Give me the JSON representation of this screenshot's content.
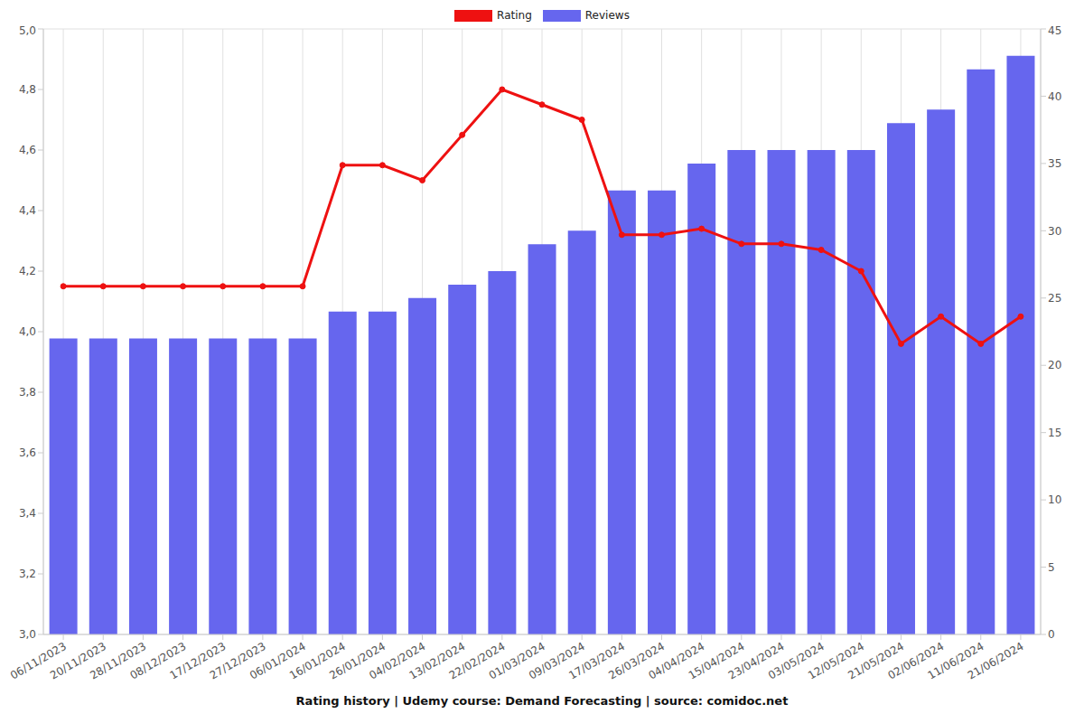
{
  "chart_data": {
    "type": "combo",
    "title": "Rating history | Udemy course: Demand Forecasting | source: comidoc.net",
    "categories": [
      "06/11/2023",
      "20/11/2023",
      "28/11/2023",
      "08/12/2023",
      "17/12/2023",
      "27/12/2023",
      "06/01/2024",
      "16/01/2024",
      "26/01/2024",
      "04/02/2024",
      "13/02/2024",
      "22/02/2024",
      "01/03/2024",
      "09/03/2024",
      "17/03/2024",
      "26/03/2024",
      "04/04/2024",
      "15/04/2024",
      "23/04/2024",
      "03/05/2024",
      "12/05/2024",
      "21/05/2024",
      "02/06/2024",
      "11/06/2024",
      "21/06/2024"
    ],
    "series": [
      {
        "name": "Rating",
        "type": "line",
        "color": "#ee1111",
        "marker": "o",
        "values": [
          4.15,
          4.15,
          4.15,
          4.15,
          4.15,
          4.15,
          4.15,
          4.55,
          4.55,
          4.5,
          4.65,
          4.8,
          4.75,
          4.7,
          4.32,
          4.32,
          4.34,
          4.29,
          4.29,
          4.27,
          4.2,
          3.96,
          4.05,
          3.96,
          4.05
        ]
      },
      {
        "name": "Reviews",
        "type": "bar",
        "axis": "y2",
        "color": "#6666ee",
        "values": [
          22,
          22,
          22,
          22,
          22,
          22,
          22,
          24,
          24,
          25,
          26,
          27,
          29,
          30,
          33,
          33,
          35,
          36,
          36,
          36,
          36,
          38,
          39,
          42,
          43
        ]
      }
    ],
    "ylim": [
      3,
      5
    ],
    "yticks": [
      {
        "value": 3,
        "label": "3,0"
      },
      {
        "value": 3.2,
        "label": "3,2"
      },
      {
        "value": 3.4,
        "label": "3,4"
      },
      {
        "value": 3.6,
        "label": "3,6"
      },
      {
        "value": 3.8,
        "label": "3,8"
      },
      {
        "value": 4,
        "label": "4,0"
      },
      {
        "value": 4.2,
        "label": "4,2"
      },
      {
        "value": 4.4,
        "label": "4,4"
      },
      {
        "value": 4.6,
        "label": "4,6"
      },
      {
        "value": 4.8,
        "label": "4,8"
      },
      {
        "value": 5,
        "label": "5,0"
      }
    ],
    "y2lim": [
      0,
      45
    ],
    "y2ticks": [
      0,
      5,
      10,
      15,
      20,
      25,
      30,
      35,
      40,
      45
    ],
    "grid": true,
    "legend": "top"
  }
}
